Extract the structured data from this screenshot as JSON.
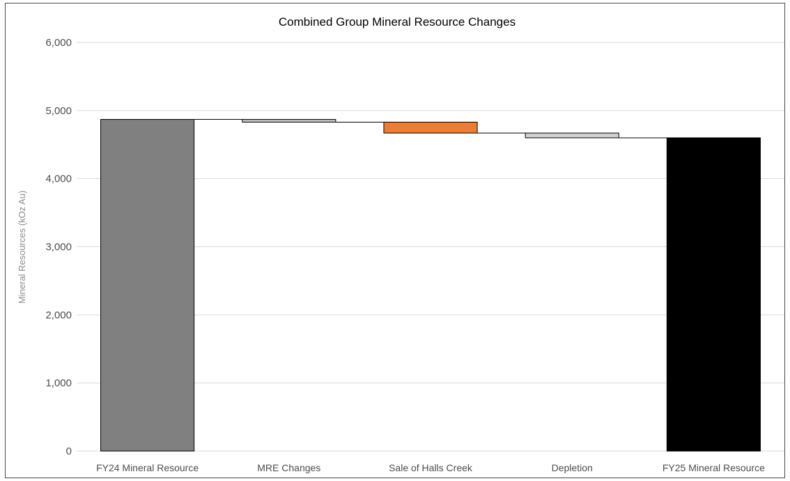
{
  "chart_data": {
    "type": "bar",
    "subtype": "waterfall",
    "title": "Combined Group Mineral Resource Changes",
    "xlabel": "",
    "ylabel": "Mineral Resources (kOz Au)",
    "ylim": [
      0,
      6000
    ],
    "yticks": [
      "0",
      "1,000",
      "2,000",
      "3,000",
      "4,000",
      "5,000",
      "6,000"
    ],
    "ytick_values": [
      0,
      1000,
      2000,
      3000,
      4000,
      5000,
      6000
    ],
    "grid": true,
    "legend": "none",
    "categories": [
      "FY24 Mineral Resource",
      "MRE Changes",
      "Sale of Halls Creek",
      "Depletion",
      "FY25 Mineral Resource"
    ],
    "bars": [
      {
        "category": "FY24 Mineral Resource",
        "kind": "total",
        "start": 0,
        "end": 4870,
        "color": "#808080"
      },
      {
        "category": "MRE Changes",
        "kind": "change",
        "start": 4870,
        "end": 4830,
        "color": "#bfbfbf"
      },
      {
        "category": "Sale of Halls Creek",
        "kind": "change",
        "start": 4830,
        "end": 4670,
        "color": "#ed7d31"
      },
      {
        "category": "Depletion",
        "kind": "change",
        "start": 4670,
        "end": 4600,
        "color": "#d0d0d0"
      },
      {
        "category": "FY25 Mineral Resource",
        "kind": "total",
        "start": 0,
        "end": 4600,
        "color": "#000000"
      }
    ]
  }
}
